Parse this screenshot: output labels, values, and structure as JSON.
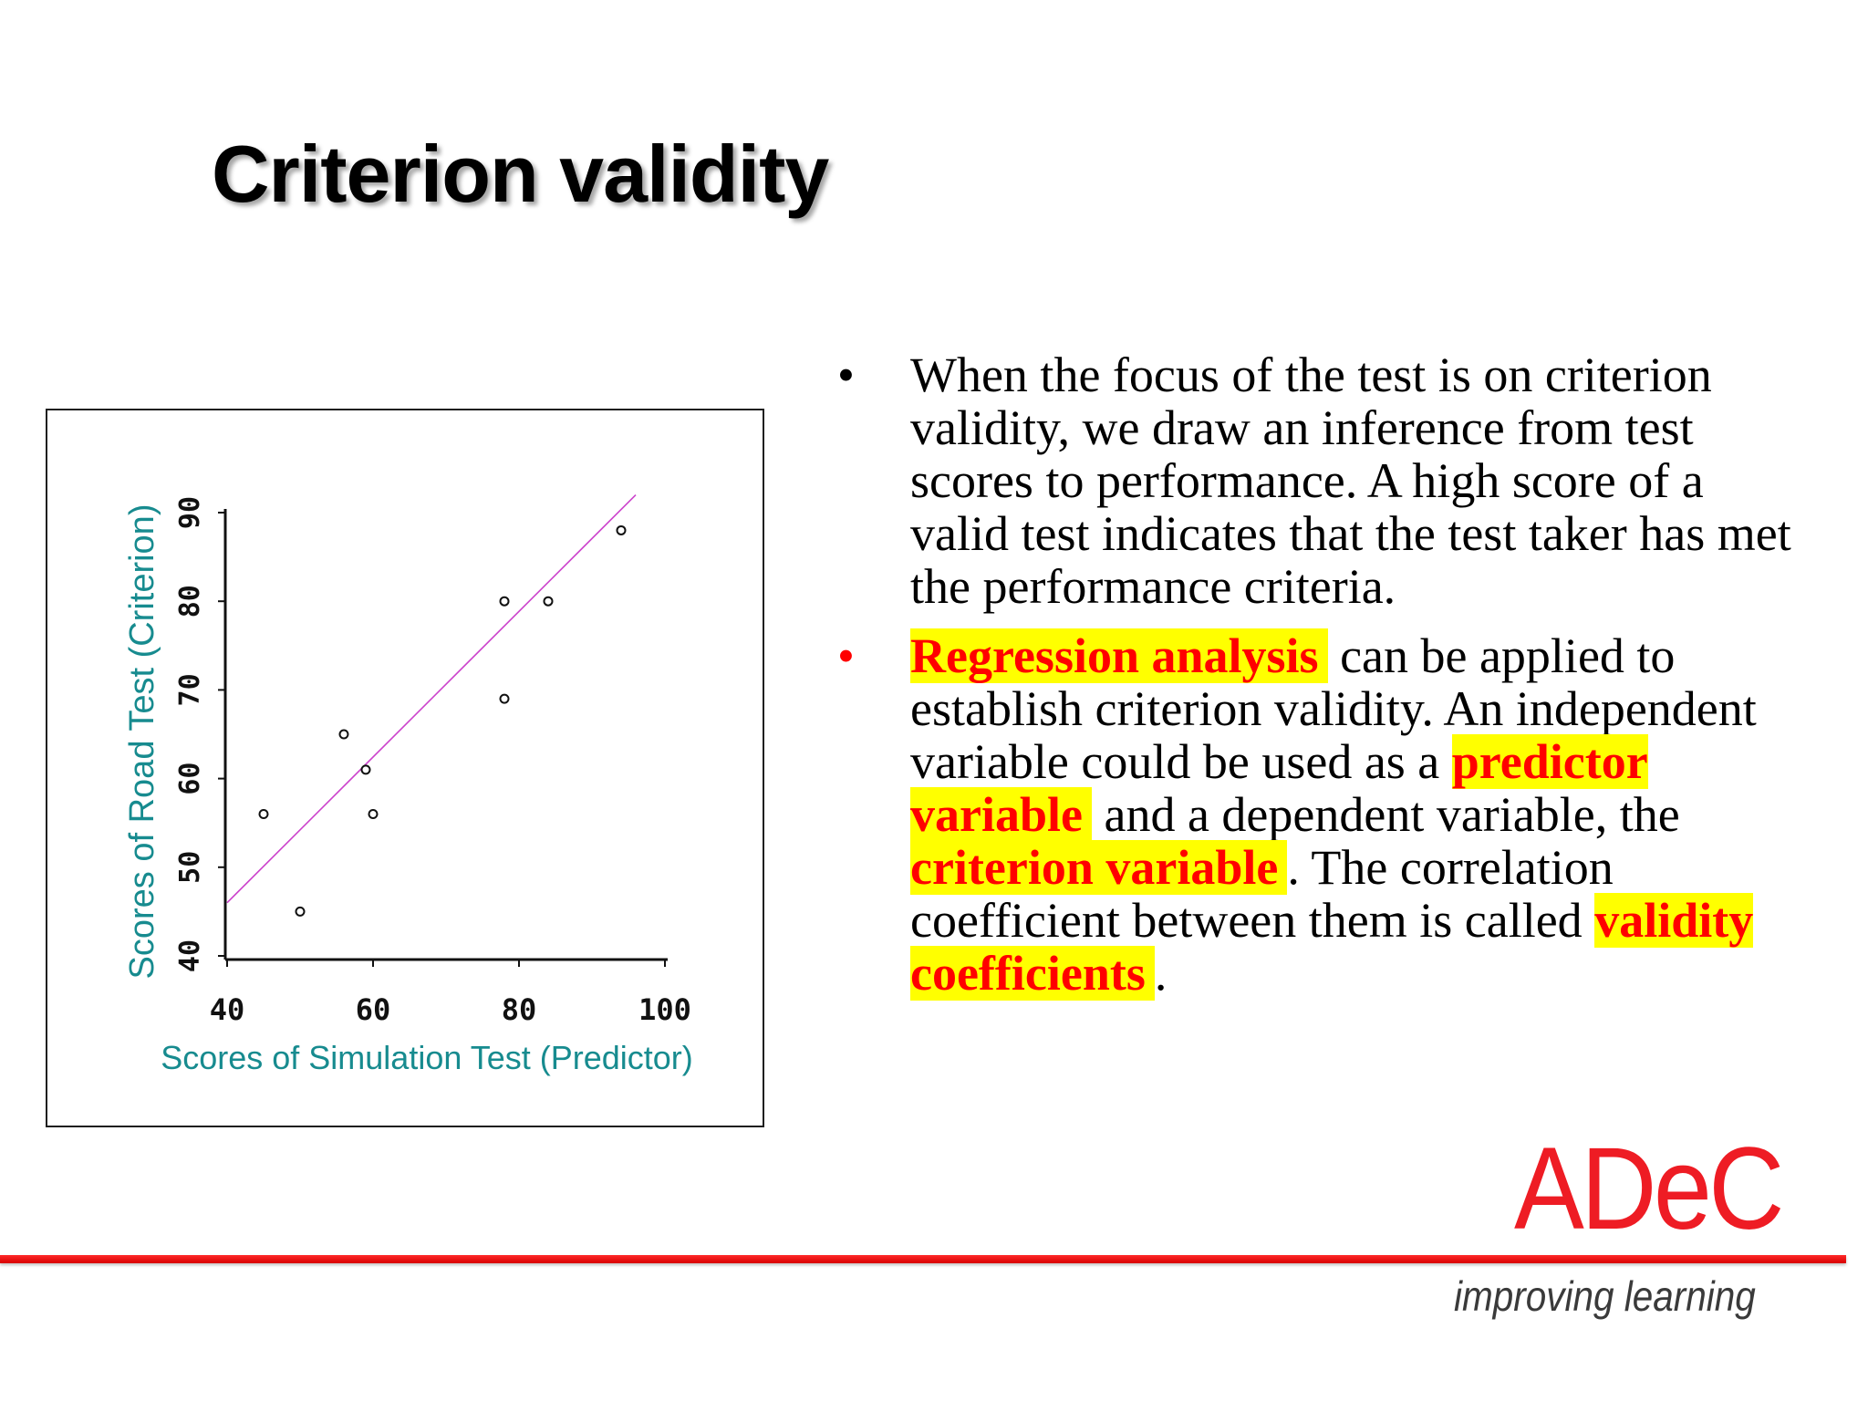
{
  "slide": {
    "title": "Criterion validity"
  },
  "bullets": [
    {
      "marker": "•",
      "marker_color": "#000000",
      "text": "When the focus of the test is on criterion validity, we draw an inference from test scores to performance. A high score of a valid test indicates that the test taker has met the performance criteria."
    },
    {
      "marker": "•",
      "marker_color": "#ff0000",
      "segments": [
        {
          "text": "Regression analysis",
          "highlight": true
        },
        {
          "text": " can be applied to establish criterion validity. An independent variable could be used as a ",
          "highlight": false
        },
        {
          "text": "predictor variable",
          "highlight": true
        },
        {
          "text": " and a dependent variable, the ",
          "highlight": false
        },
        {
          "text": "criterion variable",
          "highlight": true
        },
        {
          "text": ". The correlation coefficient between them is called ",
          "highlight": false
        },
        {
          "text": "validity coefficients",
          "highlight": true
        },
        {
          "text": ".",
          "highlight": false
        }
      ]
    }
  ],
  "colors": {
    "highlight_background": "#ffff00",
    "highlight_text": "#ff0000",
    "axis_label": "#178b8f",
    "regression_line": "#cc44cc",
    "logo": "#ee1c24"
  },
  "logo": {
    "wordmark": "ADeC",
    "tagline": "improving learning"
  },
  "chart_data": {
    "type": "scatter",
    "title": "",
    "xlabel": "Scores of Simulation Test (Predictor)",
    "ylabel": "Scores of Road Test (Criterion)",
    "xlim": [
      40,
      100
    ],
    "ylim": [
      40,
      90
    ],
    "x_ticks": [
      "40",
      "60",
      "80",
      "100"
    ],
    "y_ticks": [
      "40",
      "50",
      "60",
      "70",
      "80",
      "90"
    ],
    "points": [
      {
        "x": 45,
        "y": 56
      },
      {
        "x": 50,
        "y": 45
      },
      {
        "x": 56,
        "y": 65
      },
      {
        "x": 59,
        "y": 61
      },
      {
        "x": 60,
        "y": 56
      },
      {
        "x": 78,
        "y": 80
      },
      {
        "x": 78,
        "y": 69
      },
      {
        "x": 84,
        "y": 80
      },
      {
        "x": 94,
        "y": 88
      }
    ],
    "regression_line": {
      "x": [
        40,
        96
      ],
      "y": [
        46,
        92
      ]
    },
    "grid": false,
    "legend": "none"
  }
}
